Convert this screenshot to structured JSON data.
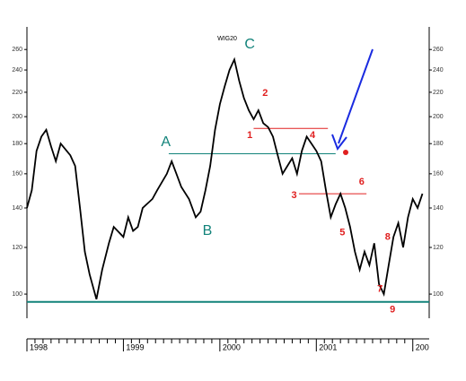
{
  "chart_data": {
    "type": "line",
    "title": "WIG20",
    "log_scale": true,
    "grid": false,
    "x": [
      1998.0,
      1998.05,
      1998.1,
      1998.15,
      1998.2,
      1998.25,
      1998.3,
      1998.35,
      1998.45,
      1998.5,
      1998.55,
      1998.6,
      1998.65,
      1998.72,
      1998.78,
      1998.85,
      1998.9,
      1999.0,
      1999.05,
      1999.1,
      1999.15,
      1999.2,
      1999.3,
      1999.35,
      1999.45,
      1999.5,
      1999.55,
      1999.6,
      1999.68,
      1999.75,
      1999.8,
      1999.85,
      1999.9,
      1999.95,
      2000.0,
      2000.05,
      2000.1,
      2000.15,
      2000.2,
      2000.25,
      2000.3,
      2000.35,
      2000.4,
      2000.45,
      2000.5,
      2000.55,
      2000.6,
      2000.65,
      2000.7,
      2000.75,
      2000.8,
      2000.85,
      2000.9,
      2000.95,
      2001.0,
      2001.05,
      2001.1,
      2001.15,
      2001.2,
      2001.25,
      2001.3,
      2001.35,
      2001.4,
      2001.45,
      2001.5,
      2001.55,
      2001.6,
      2001.65,
      2001.7,
      2001.75,
      2001.8,
      2001.85,
      2001.9,
      2001.95,
      2002.0,
      2002.05,
      2002.1
    ],
    "series": [
      {
        "color": "#000000",
        "values": [
          140,
          150,
          175,
          185,
          190,
          178,
          168,
          180,
          172,
          165,
          140,
          118,
          108,
          98,
          110,
          122,
          130,
          125,
          135,
          128,
          130,
          140,
          145,
          150,
          160,
          168,
          160,
          152,
          145,
          135,
          138,
          150,
          165,
          190,
          210,
          225,
          240,
          250,
          230,
          215,
          205,
          198,
          205,
          195,
          192,
          185,
          172,
          160,
          165,
          170,
          160,
          175,
          185,
          180,
          175,
          168,
          150,
          135,
          142,
          148,
          140,
          130,
          118,
          110,
          118,
          112,
          122,
          104,
          100,
          112,
          125,
          132,
          120,
          135,
          145,
          140,
          148
        ]
      }
    ],
    "xlim": [
      1998,
      2002.17
    ],
    "ylim": [
      91,
      284
    ],
    "xticks": [
      1998,
      1999,
      2000,
      2001,
      {
        "value": 2002,
        "label": "200"
      }
    ],
    "yticks": [
      100,
      120,
      140,
      160,
      180,
      200,
      220,
      240,
      260
    ],
    "reference_lines": [
      {
        "value": 97,
        "x": [
          1998,
          2002.17
        ],
        "color": "#12837a"
      },
      {
        "value": 173,
        "x": [
          1999.47,
          2001.2
        ],
        "color": "#12837a"
      },
      {
        "value": 191,
        "x": [
          2000.35,
          2001.12
        ],
        "color": "#e02020"
      },
      {
        "value": 148,
        "x": [
          2000.82,
          2001.52
        ],
        "color": "#e02020"
      }
    ],
    "annotations": [
      {
        "text": "A",
        "x": 1999.44,
        "y": 181,
        "color": "#12837a"
      },
      {
        "text": "B",
        "x": 1999.87,
        "y": 128,
        "color": "#12837a"
      },
      {
        "text": "C",
        "x": 2000.31,
        "y": 265,
        "color": "#12837a"
      },
      {
        "text": "1",
        "x": 2000.31,
        "y": 186,
        "color": "#e02020"
      },
      {
        "text": "2",
        "x": 2000.47,
        "y": 219,
        "color": "#e02020"
      },
      {
        "text": "3",
        "x": 2000.77,
        "y": 147,
        "color": "#e02020"
      },
      {
        "text": "4",
        "x": 2000.96,
        "y": 186,
        "color": "#e02020"
      },
      {
        "text": "5",
        "x": 2001.27,
        "y": 127,
        "color": "#e02020"
      },
      {
        "text": "6",
        "x": 2001.47,
        "y": 155,
        "color": "#e02020"
      },
      {
        "text": "7",
        "x": 2001.66,
        "y": 102,
        "color": "#e02020"
      },
      {
        "text": "8",
        "x": 2001.74,
        "y": 125,
        "color": "#e02020"
      },
      {
        "text": "9",
        "x": 2001.79,
        "y": 94,
        "color": "#e02020"
      }
    ]
  }
}
